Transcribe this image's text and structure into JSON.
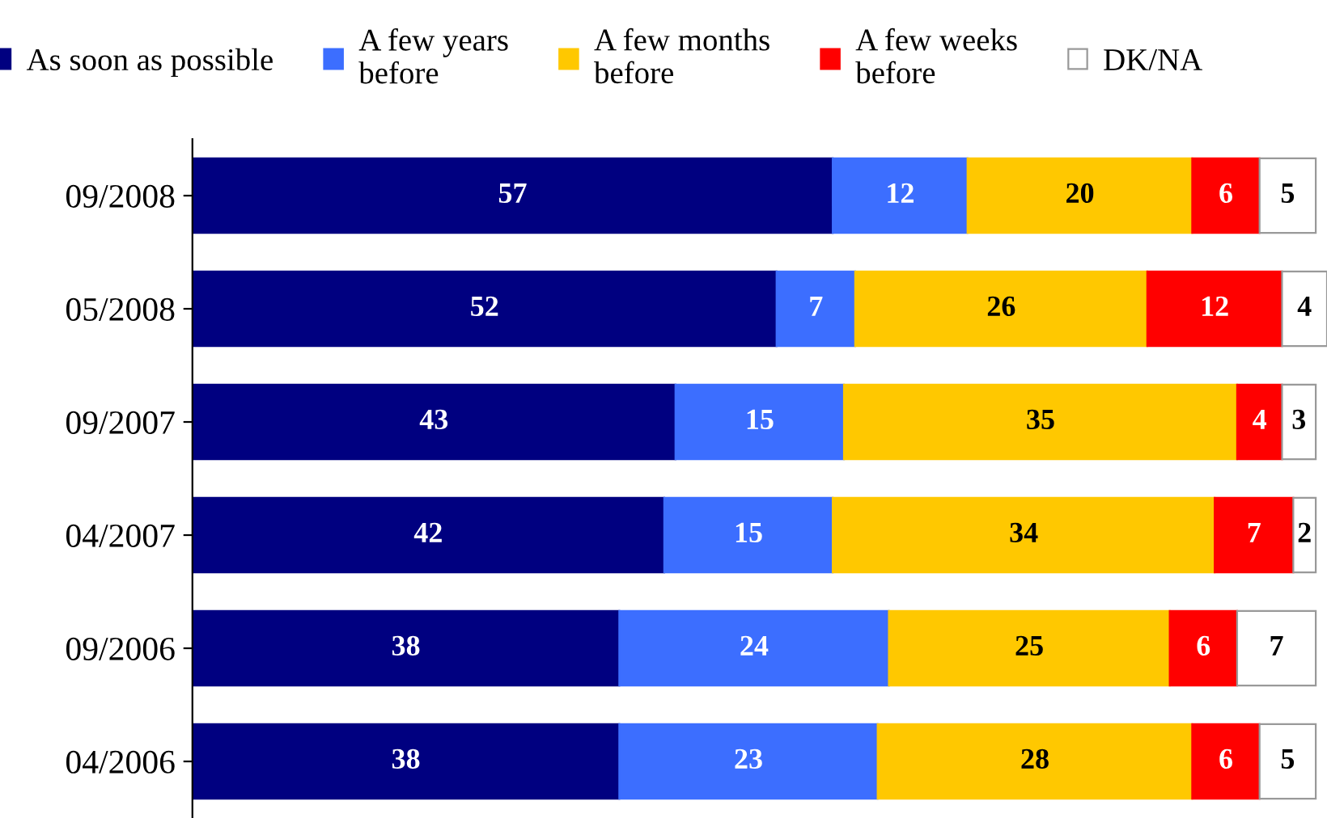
{
  "chart_data": {
    "type": "bar",
    "orientation": "horizontal",
    "stacked": true,
    "data_labels": true,
    "legend": "top",
    "tick_labels": "y",
    "grid": false,
    "xlim": [
      0,
      101
    ],
    "categories": [
      "09/2008",
      "05/2008",
      "09/2007",
      "04/2007",
      "09/2006",
      "04/2006"
    ],
    "series": [
      {
        "name": "As soon as possible",
        "color": "#000080",
        "values": [
          57,
          52,
          43,
          42,
          38,
          38
        ]
      },
      {
        "name": "A few years\nbefore",
        "color": "#3c6eff",
        "values": [
          12,
          7,
          15,
          15,
          24,
          23
        ]
      },
      {
        "name": "A few months\nbefore",
        "color": "#ffc800",
        "values": [
          20,
          26,
          35,
          34,
          25,
          28
        ]
      },
      {
        "name": "A few weeks\nbefore",
        "color": "#ff0000",
        "values": [
          6,
          12,
          4,
          7,
          6,
          6
        ]
      },
      {
        "name": "DK/NA",
        "color": "#ffffff",
        "values": [
          5,
          4,
          3,
          2,
          7,
          5
        ]
      }
    ]
  }
}
